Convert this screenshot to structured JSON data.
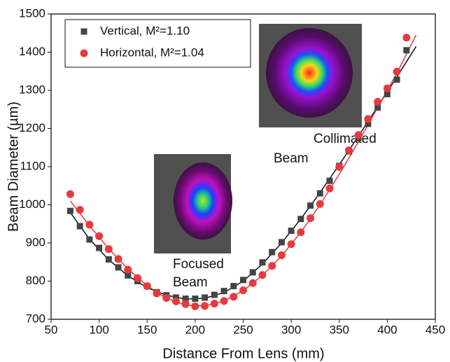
{
  "chart_data": {
    "type": "scatter",
    "x_label": "Distance From Lens (mm)",
    "y_label": "Beam Diameter (µm)",
    "xlim": [
      50,
      450
    ],
    "xticks": [
      50,
      100,
      150,
      200,
      250,
      300,
      350,
      400,
      450
    ],
    "ylim": [
      700,
      1500
    ],
    "yticks": [
      700,
      800,
      900,
      1000,
      1100,
      1200,
      1300,
      1400,
      1500
    ],
    "legend": "upper left",
    "x": [
      70,
      80,
      90,
      100,
      110,
      120,
      130,
      140,
      150,
      160,
      170,
      180,
      190,
      200,
      210,
      220,
      230,
      240,
      250,
      260,
      270,
      280,
      290,
      300,
      310,
      320,
      330,
      340,
      350,
      360,
      370,
      380,
      390,
      400,
      410,
      420
    ],
    "series": [
      {
        "name": "Vertical, M²=1.10",
        "color": "#444444",
        "marker": "square",
        "values": [
          984,
          944,
          909,
          887,
          857,
          836,
          815,
          800,
          787,
          771,
          763,
          757,
          754,
          754,
          757,
          764,
          774,
          787,
          803,
          823,
          849,
          876,
          902,
          932,
          963,
          998,
          1030,
          1063,
          1102,
          1140,
          1175,
          1212,
          1255,
          1290,
          1328,
          1405
        ]
      },
      {
        "name": "Horizontal, M²=1.04",
        "color": "#e8393d",
        "marker": "circle",
        "values": [
          1028,
          987,
          948,
          918,
          884,
          858,
          830,
          808,
          787,
          768,
          756,
          747,
          740,
          734,
          735,
          741,
          748,
          759,
          776,
          795,
          816,
          840,
          868,
          897,
          928,
          965,
          1002,
          1043,
          1099,
          1143,
          1183,
          1225,
          1270,
          1305,
          1349,
          1438
        ]
      }
    ],
    "fits": [
      {
        "color": "#111111",
        "x": [
          70,
          90,
          110,
          130,
          150,
          170,
          190,
          210,
          230,
          250,
          270,
          290,
          310,
          330,
          350,
          370,
          390,
          410,
          430
        ],
        "values": [
          980,
          910,
          856,
          814,
          783,
          763,
          753,
          755,
          770,
          800,
          845,
          900,
          963,
          1032,
          1105,
          1180,
          1257,
          1335,
          1415
        ]
      },
      {
        "color": "#e8393d",
        "x": [
          70,
          90,
          110,
          130,
          150,
          170,
          190,
          210,
          230,
          250,
          270,
          290,
          310,
          330,
          350,
          370,
          390,
          410,
          430
        ],
        "values": [
          1010,
          945,
          885,
          832,
          788,
          755,
          737,
          735,
          748,
          775,
          815,
          866,
          928,
          1000,
          1080,
          1165,
          1255,
          1345,
          1445
        ]
      }
    ],
    "annotations": [
      {
        "lines": [
          "Collimated",
          "Beam"
        ]
      },
      {
        "lines": [
          "Focused",
          "Beam"
        ]
      }
    ]
  }
}
